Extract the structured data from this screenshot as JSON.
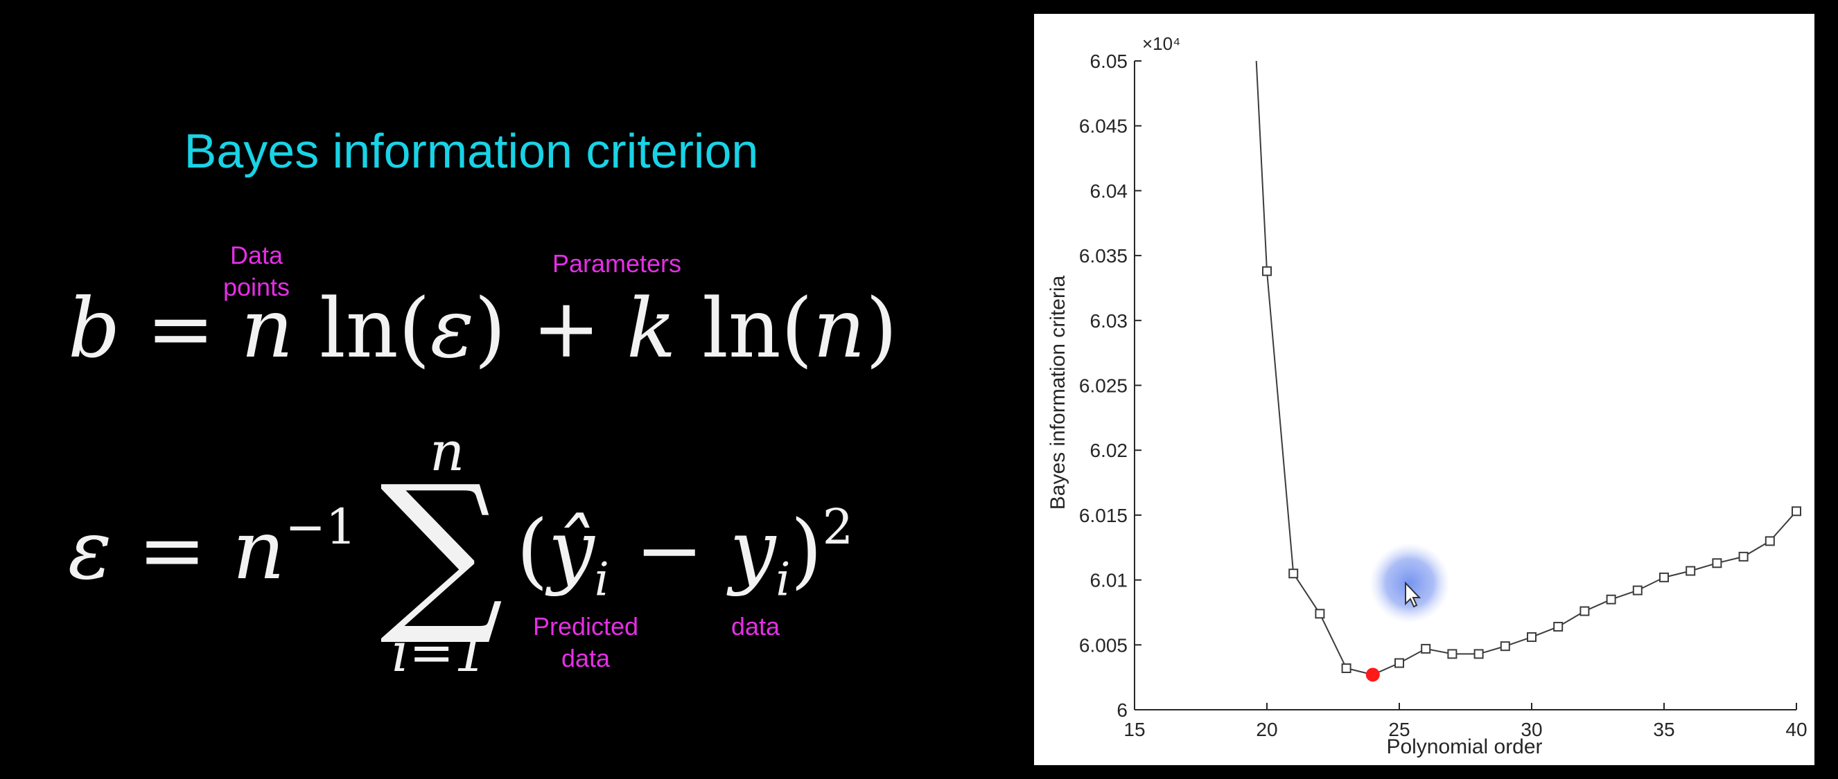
{
  "slide": {
    "title": "Bayes information criterion",
    "annotations": {
      "data_points": [
        "Data",
        "points"
      ],
      "parameters": "Parameters",
      "predicted_data": [
        "Predicted",
        "data"
      ],
      "data": "data"
    },
    "equation1": {
      "lhs": "b",
      "eq": "=",
      "term1_var": "n",
      "term1_fn": "ln(",
      "term1_arg": "ε",
      "term1_close": ")",
      "plus": "+",
      "term2_var": "k",
      "term2_fn": "ln(",
      "term2_arg": "n",
      "term2_close": ")"
    },
    "equation2": {
      "lhs": "ε",
      "eq": "=",
      "base": "n",
      "exponent": "−1",
      "sum_symbol": "∑",
      "sum_upper": "n",
      "sum_lower": "i=1",
      "open": "(",
      "yhat": "ŷ",
      "sub_i1": "i",
      "minus": "−",
      "y": "y",
      "sub_i2": "i",
      "close": ")",
      "power": "2"
    }
  },
  "chart_data": {
    "type": "line",
    "xlabel": "Polynomial order",
    "ylabel": "Bayes information criteria",
    "exponent_label": "×10⁴",
    "xlim": [
      15,
      40
    ],
    "ylim": [
      6.0,
      6.05
    ],
    "xticks": [
      15,
      20,
      25,
      30,
      35,
      40
    ],
    "yticks": [
      6,
      6.005,
      6.01,
      6.015,
      6.02,
      6.025,
      6.03,
      6.035,
      6.04,
      6.045,
      6.05
    ],
    "ytick_labels": [
      "6",
      "6.005",
      "6.01",
      "6.015",
      "6.02",
      "6.025",
      "6.03",
      "6.035",
      "6.04",
      "6.045",
      "6.05"
    ],
    "grid": false,
    "line_start": [
      19.6,
      6.05
    ],
    "x": [
      20,
      21,
      22,
      23,
      24,
      25,
      26,
      27,
      28,
      29,
      30,
      31,
      32,
      33,
      34,
      35,
      36,
      37,
      38,
      39,
      40
    ],
    "values": [
      6.0338,
      6.0105,
      6.0074,
      6.0032,
      6.0027,
      6.0036,
      6.0047,
      6.0043,
      6.0043,
      6.0049,
      6.0056,
      6.0064,
      6.0076,
      6.0085,
      6.0092,
      6.0102,
      6.0107,
      6.0113,
      6.0118,
      6.013,
      6.0153
    ],
    "min_point": {
      "x": 24,
      "y": 6.0027
    },
    "colors": {
      "line": "#3c3c3c",
      "marker": "#3c3c3c",
      "min_marker": "#ff1a1a",
      "cursor_halo": "#6f8ff0"
    }
  }
}
